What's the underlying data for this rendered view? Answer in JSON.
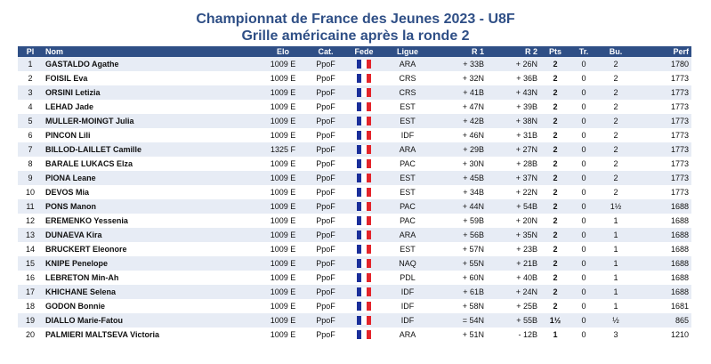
{
  "header": {
    "title": "Championnat de France des Jeunes 2023 - U8F",
    "subtitle": "Grille américaine après la ronde 2"
  },
  "columns": {
    "pl": "Pl",
    "nom": "Nom",
    "elo": "Elo",
    "cat": "Cat.",
    "fede": "Fede",
    "ligue": "Ligue",
    "r1": "R 1",
    "r2": "R 2",
    "pts": "Pts",
    "tr": "Tr.",
    "bu": "Bu.",
    "perf": "Perf"
  },
  "flag_icon": "france-flag-icon",
  "rows": [
    {
      "pl": "1",
      "nom": "GASTALDO Agathe",
      "elo": "1009 E",
      "cat": "PpoF",
      "ligue": "ARA",
      "r1": "+ 33B",
      "r2": "+ 26N",
      "pts": "2",
      "tr": "0",
      "bu": "2",
      "perf": "1780"
    },
    {
      "pl": "2",
      "nom": "FOISIL Eva",
      "elo": "1009 E",
      "cat": "PpoF",
      "ligue": "CRS",
      "r1": "+ 32N",
      "r2": "+ 36B",
      "pts": "2",
      "tr": "0",
      "bu": "2",
      "perf": "1773"
    },
    {
      "pl": "3",
      "nom": "ORSINI Letizia",
      "elo": "1009 E",
      "cat": "PpoF",
      "ligue": "CRS",
      "r1": "+ 41B",
      "r2": "+ 43N",
      "pts": "2",
      "tr": "0",
      "bu": "2",
      "perf": "1773"
    },
    {
      "pl": "4",
      "nom": "LEHAD Jade",
      "elo": "1009 E",
      "cat": "PpoF",
      "ligue": "EST",
      "r1": "+ 47N",
      "r2": "+ 39B",
      "pts": "2",
      "tr": "0",
      "bu": "2",
      "perf": "1773"
    },
    {
      "pl": "5",
      "nom": "MULLER-MOINGT Julia",
      "elo": "1009 E",
      "cat": "PpoF",
      "ligue": "EST",
      "r1": "+ 42B",
      "r2": "+ 38N",
      "pts": "2",
      "tr": "0",
      "bu": "2",
      "perf": "1773"
    },
    {
      "pl": "6",
      "nom": "PINCON Lili",
      "elo": "1009 E",
      "cat": "PpoF",
      "ligue": "IDF",
      "r1": "+ 46N",
      "r2": "+ 31B",
      "pts": "2",
      "tr": "0",
      "bu": "2",
      "perf": "1773"
    },
    {
      "pl": "7",
      "nom": "BILLOD-LAILLET Camille",
      "elo": "1325 F",
      "cat": "PpoF",
      "ligue": "ARA",
      "r1": "+ 29B",
      "r2": "+ 27N",
      "pts": "2",
      "tr": "0",
      "bu": "2",
      "perf": "1773"
    },
    {
      "pl": "8",
      "nom": "BARALE LUKACS Elza",
      "elo": "1009 E",
      "cat": "PpoF",
      "ligue": "PAC",
      "r1": "+ 30N",
      "r2": "+ 28B",
      "pts": "2",
      "tr": "0",
      "bu": "2",
      "perf": "1773"
    },
    {
      "pl": "9",
      "nom": "PIONA Leane",
      "elo": "1009 E",
      "cat": "PpoF",
      "ligue": "EST",
      "r1": "+ 45B",
      "r2": "+ 37N",
      "pts": "2",
      "tr": "0",
      "bu": "2",
      "perf": "1773"
    },
    {
      "pl": "10",
      "nom": "DEVOS Mia",
      "elo": "1009 E",
      "cat": "PpoF",
      "ligue": "EST",
      "r1": "+ 34B",
      "r2": "+ 22N",
      "pts": "2",
      "tr": "0",
      "bu": "2",
      "perf": "1773"
    },
    {
      "pl": "11",
      "nom": "PONS Manon",
      "elo": "1009 E",
      "cat": "PpoF",
      "ligue": "PAC",
      "r1": "+ 44N",
      "r2": "+ 54B",
      "pts": "2",
      "tr": "0",
      "bu": "1½",
      "perf": "1688"
    },
    {
      "pl": "12",
      "nom": "EREMENKO Yessenia",
      "elo": "1009 E",
      "cat": "PpoF",
      "ligue": "PAC",
      "r1": "+ 59B",
      "r2": "+ 20N",
      "pts": "2",
      "tr": "0",
      "bu": "1",
      "perf": "1688"
    },
    {
      "pl": "13",
      "nom": "DUNAEVA Kira",
      "elo": "1009 E",
      "cat": "PpoF",
      "ligue": "ARA",
      "r1": "+ 56B",
      "r2": "+ 35N",
      "pts": "2",
      "tr": "0",
      "bu": "1",
      "perf": "1688"
    },
    {
      "pl": "14",
      "nom": "BRUCKERT Eleonore",
      "elo": "1009 E",
      "cat": "PpoF",
      "ligue": "EST",
      "r1": "+ 57N",
      "r2": "+ 23B",
      "pts": "2",
      "tr": "0",
      "bu": "1",
      "perf": "1688"
    },
    {
      "pl": "15",
      "nom": "KNIPE Penelope",
      "elo": "1009 E",
      "cat": "PpoF",
      "ligue": "NAQ",
      "r1": "+ 55N",
      "r2": "+ 21B",
      "pts": "2",
      "tr": "0",
      "bu": "1",
      "perf": "1688"
    },
    {
      "pl": "16",
      "nom": "LEBRETON Min-Ah",
      "elo": "1009 E",
      "cat": "PpoF",
      "ligue": "PDL",
      "r1": "+ 60N",
      "r2": "+ 40B",
      "pts": "2",
      "tr": "0",
      "bu": "1",
      "perf": "1688"
    },
    {
      "pl": "17",
      "nom": "KHICHANE Selena",
      "elo": "1009 E",
      "cat": "PpoF",
      "ligue": "IDF",
      "r1": "+ 61B",
      "r2": "+ 24N",
      "pts": "2",
      "tr": "0",
      "bu": "1",
      "perf": "1688"
    },
    {
      "pl": "18",
      "nom": "GODON Bonnie",
      "elo": "1009 E",
      "cat": "PpoF",
      "ligue": "IDF",
      "r1": "+ 58N",
      "r2": "+ 25B",
      "pts": "2",
      "tr": "0",
      "bu": "1",
      "perf": "1681"
    },
    {
      "pl": "19",
      "nom": "DIALLO Marie-Fatou",
      "elo": "1009 E",
      "cat": "PpoF",
      "ligue": "IDF",
      "r1": "= 54N",
      "r2": "+ 55B",
      "pts": "1½",
      "tr": "0",
      "bu": "½",
      "perf": "865"
    },
    {
      "pl": "20",
      "nom": "PALMIERI MALTSEVA Victoria",
      "elo": "1009 E",
      "cat": "PpoF",
      "ligue": "ARA",
      "r1": "+ 51N",
      "r2": "- 12B",
      "pts": "1",
      "tr": "0",
      "bu": "3",
      "perf": "1210"
    }
  ]
}
